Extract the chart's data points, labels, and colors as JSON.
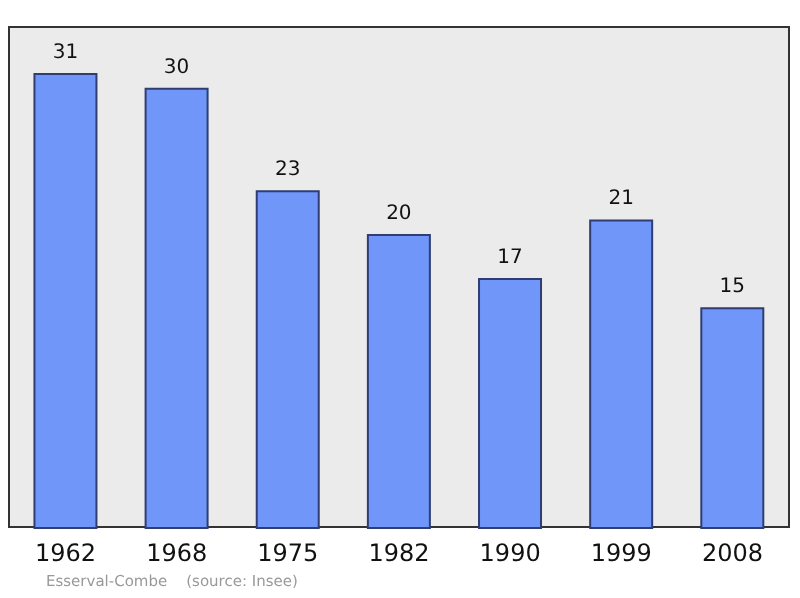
{
  "chart_data": {
    "type": "bar",
    "categories": [
      "1962",
      "1968",
      "1975",
      "1982",
      "1990",
      "1999",
      "2008"
    ],
    "values": [
      31,
      30,
      23,
      20,
      17,
      21,
      15
    ],
    "color": "#6f96f8",
    "data_labels": true,
    "annotations": [
      "Esserval-Combe    (source: Insee)"
    ]
  }
}
